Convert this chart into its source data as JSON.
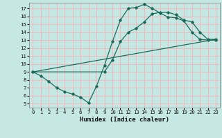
{
  "xlabel": "Humidex (Indice chaleur)",
  "background_color": "#c5e8e5",
  "grid_color": "#f2b8b8",
  "line_color": "#1a6b5a",
  "xlim": [
    -0.5,
    23.5
  ],
  "ylim": [
    4.5,
    17.7
  ],
  "xticks": [
    0,
    1,
    2,
    3,
    4,
    5,
    6,
    7,
    8,
    9,
    10,
    11,
    12,
    13,
    14,
    15,
    16,
    17,
    18,
    19,
    20,
    21,
    22,
    23
  ],
  "yticks": [
    5,
    6,
    7,
    8,
    9,
    10,
    11,
    12,
    13,
    14,
    15,
    16,
    17
  ],
  "line1_x": [
    0,
    1,
    2,
    3,
    4,
    5,
    6,
    7,
    8,
    9,
    10,
    11,
    12,
    13,
    14,
    15,
    16,
    17,
    18,
    19,
    20,
    21,
    22,
    23
  ],
  "line1_y": [
    9.0,
    8.5,
    7.8,
    7.0,
    6.5,
    6.2,
    5.8,
    5.1,
    7.2,
    9.8,
    12.8,
    15.5,
    17.0,
    17.1,
    17.5,
    17.0,
    16.4,
    15.9,
    15.8,
    15.4,
    14.0,
    13.1,
    13.0,
    13.0
  ],
  "line2_x": [
    0,
    9,
    10,
    11,
    12,
    13,
    14,
    15,
    16,
    17,
    18,
    19,
    20,
    21,
    22,
    23
  ],
  "line2_y": [
    9.0,
    9.0,
    10.5,
    12.8,
    14.0,
    14.5,
    15.3,
    16.3,
    16.5,
    16.5,
    16.2,
    15.5,
    15.3,
    14.0,
    13.1,
    13.1
  ],
  "line3_x": [
    0,
    23
  ],
  "line3_y": [
    9.0,
    13.1
  ]
}
